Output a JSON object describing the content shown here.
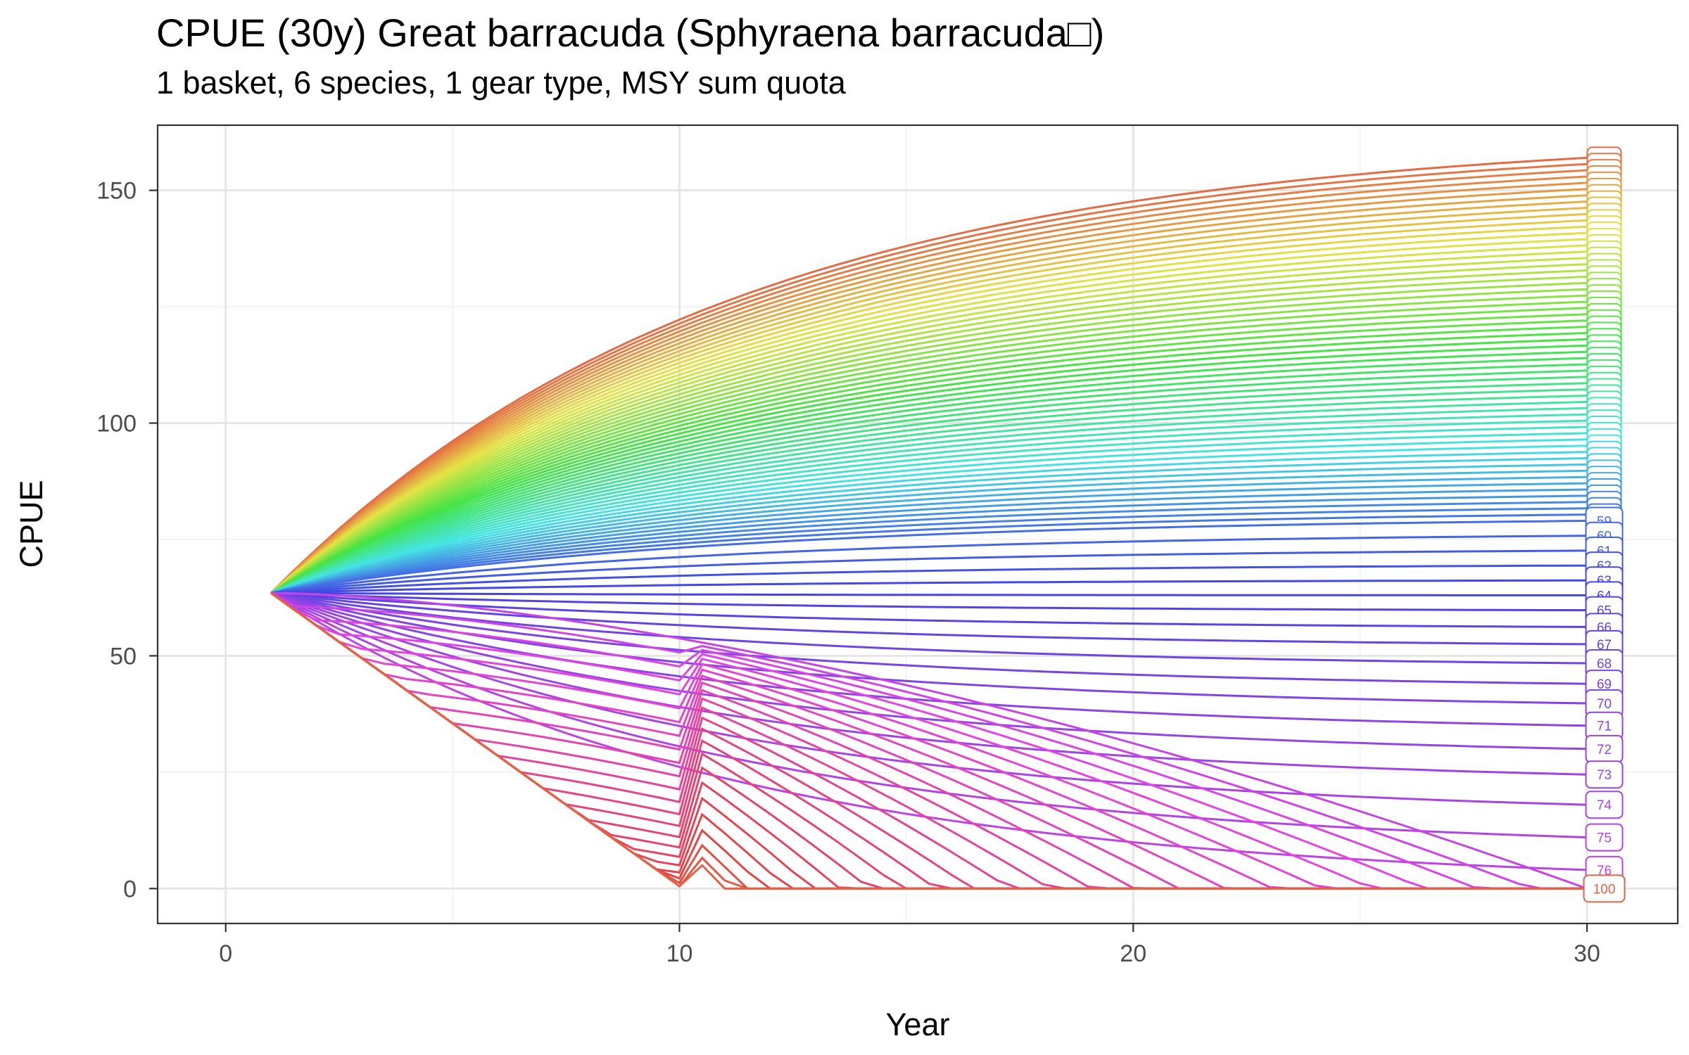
{
  "chart_data": {
    "type": "line",
    "title": "CPUE (30y) Great barracuda (Sphyraena barracuda□)",
    "subtitle": "1 basket, 6 species, 1 gear type, MSY sum quota",
    "xlabel": "Year",
    "ylabel": "CPUE",
    "xlim": [
      -1.5,
      32
    ],
    "ylim": [
      -7.5,
      164
    ],
    "x_ticks": [
      0,
      10,
      20,
      30
    ],
    "y_ticks": [
      0,
      50,
      100,
      150
    ],
    "grid": true,
    "legend": "none",
    "x": [
      1,
      30
    ],
    "series_count": 100,
    "series_names_from": 1,
    "series_names_to": 100,
    "start_value": 63.5,
    "max_end_value": 157,
    "collapse_to_zero_year": 11,
    "annotated_end_labels": [
      {
        "name": "59",
        "value": 79
      },
      {
        "name": "60",
        "value": 75.8
      },
      {
        "name": "61",
        "value": 72.6
      },
      {
        "name": "62",
        "value": 69.4
      },
      {
        "name": "63",
        "value": 66.2
      },
      {
        "name": "64",
        "value": 63
      },
      {
        "name": "65",
        "value": 59.8
      },
      {
        "name": "66",
        "value": 56.2
      },
      {
        "name": "67",
        "value": 52.5
      },
      {
        "name": "68",
        "value": 48.4
      },
      {
        "name": "69",
        "value": 44
      },
      {
        "name": "70",
        "value": 39.8
      },
      {
        "name": "71",
        "value": 35
      },
      {
        "name": "72",
        "value": 30
      },
      {
        "name": "73",
        "value": 24.5
      },
      {
        "name": "74",
        "value": 18
      },
      {
        "name": "75",
        "value": 11
      },
      {
        "name": "76",
        "value": 4
      },
      {
        "name": "100",
        "value": 0
      }
    ]
  }
}
